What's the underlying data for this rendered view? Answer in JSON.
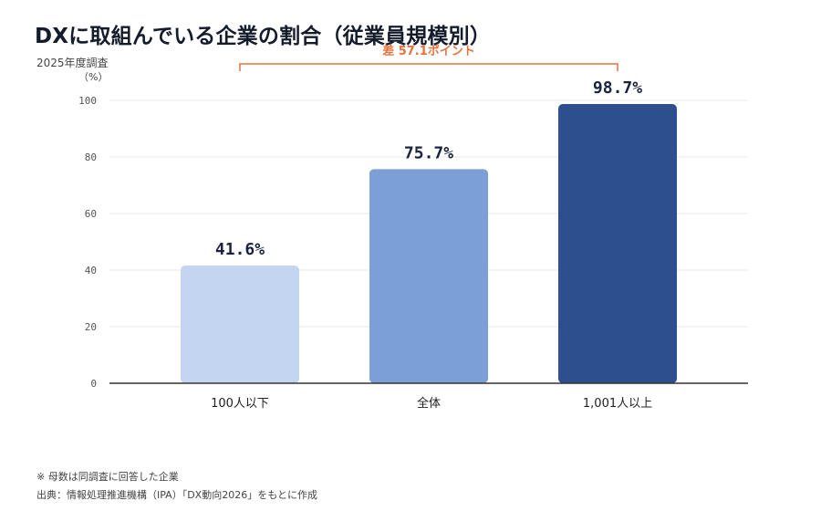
{
  "title": "DXに取組んでいる企業の割合（従業員規模別）",
  "subtitle": "2025年度調査",
  "unit": "（%）",
  "annotation": "差 57.1ポイント",
  "footnotes": [
    "※ 母数は同調査に回答した企業",
    "出典：情報処理推進機構（IPA）「DX動向2026」をもとに作成"
  ],
  "colors": {
    "bars": [
      "#c3d5f0",
      "#7b9fd6",
      "#2d4f8e"
    ],
    "annotation": "#e8703a",
    "grid": "#e8e8e8",
    "axis": "#333333",
    "data_label": "#1a2440",
    "tick_label": "#555555"
  },
  "chart_data": {
    "type": "bar",
    "categories": [
      "100人以下",
      "全体",
      "1,001人以上"
    ],
    "values": [
      41.6,
      75.7,
      98.7
    ],
    "data_labels": [
      "41.6%",
      "75.7%",
      "98.7%"
    ],
    "yticks": [
      0,
      20,
      40,
      60,
      80,
      100
    ],
    "ylim": [
      0,
      100
    ],
    "grid": true
  }
}
